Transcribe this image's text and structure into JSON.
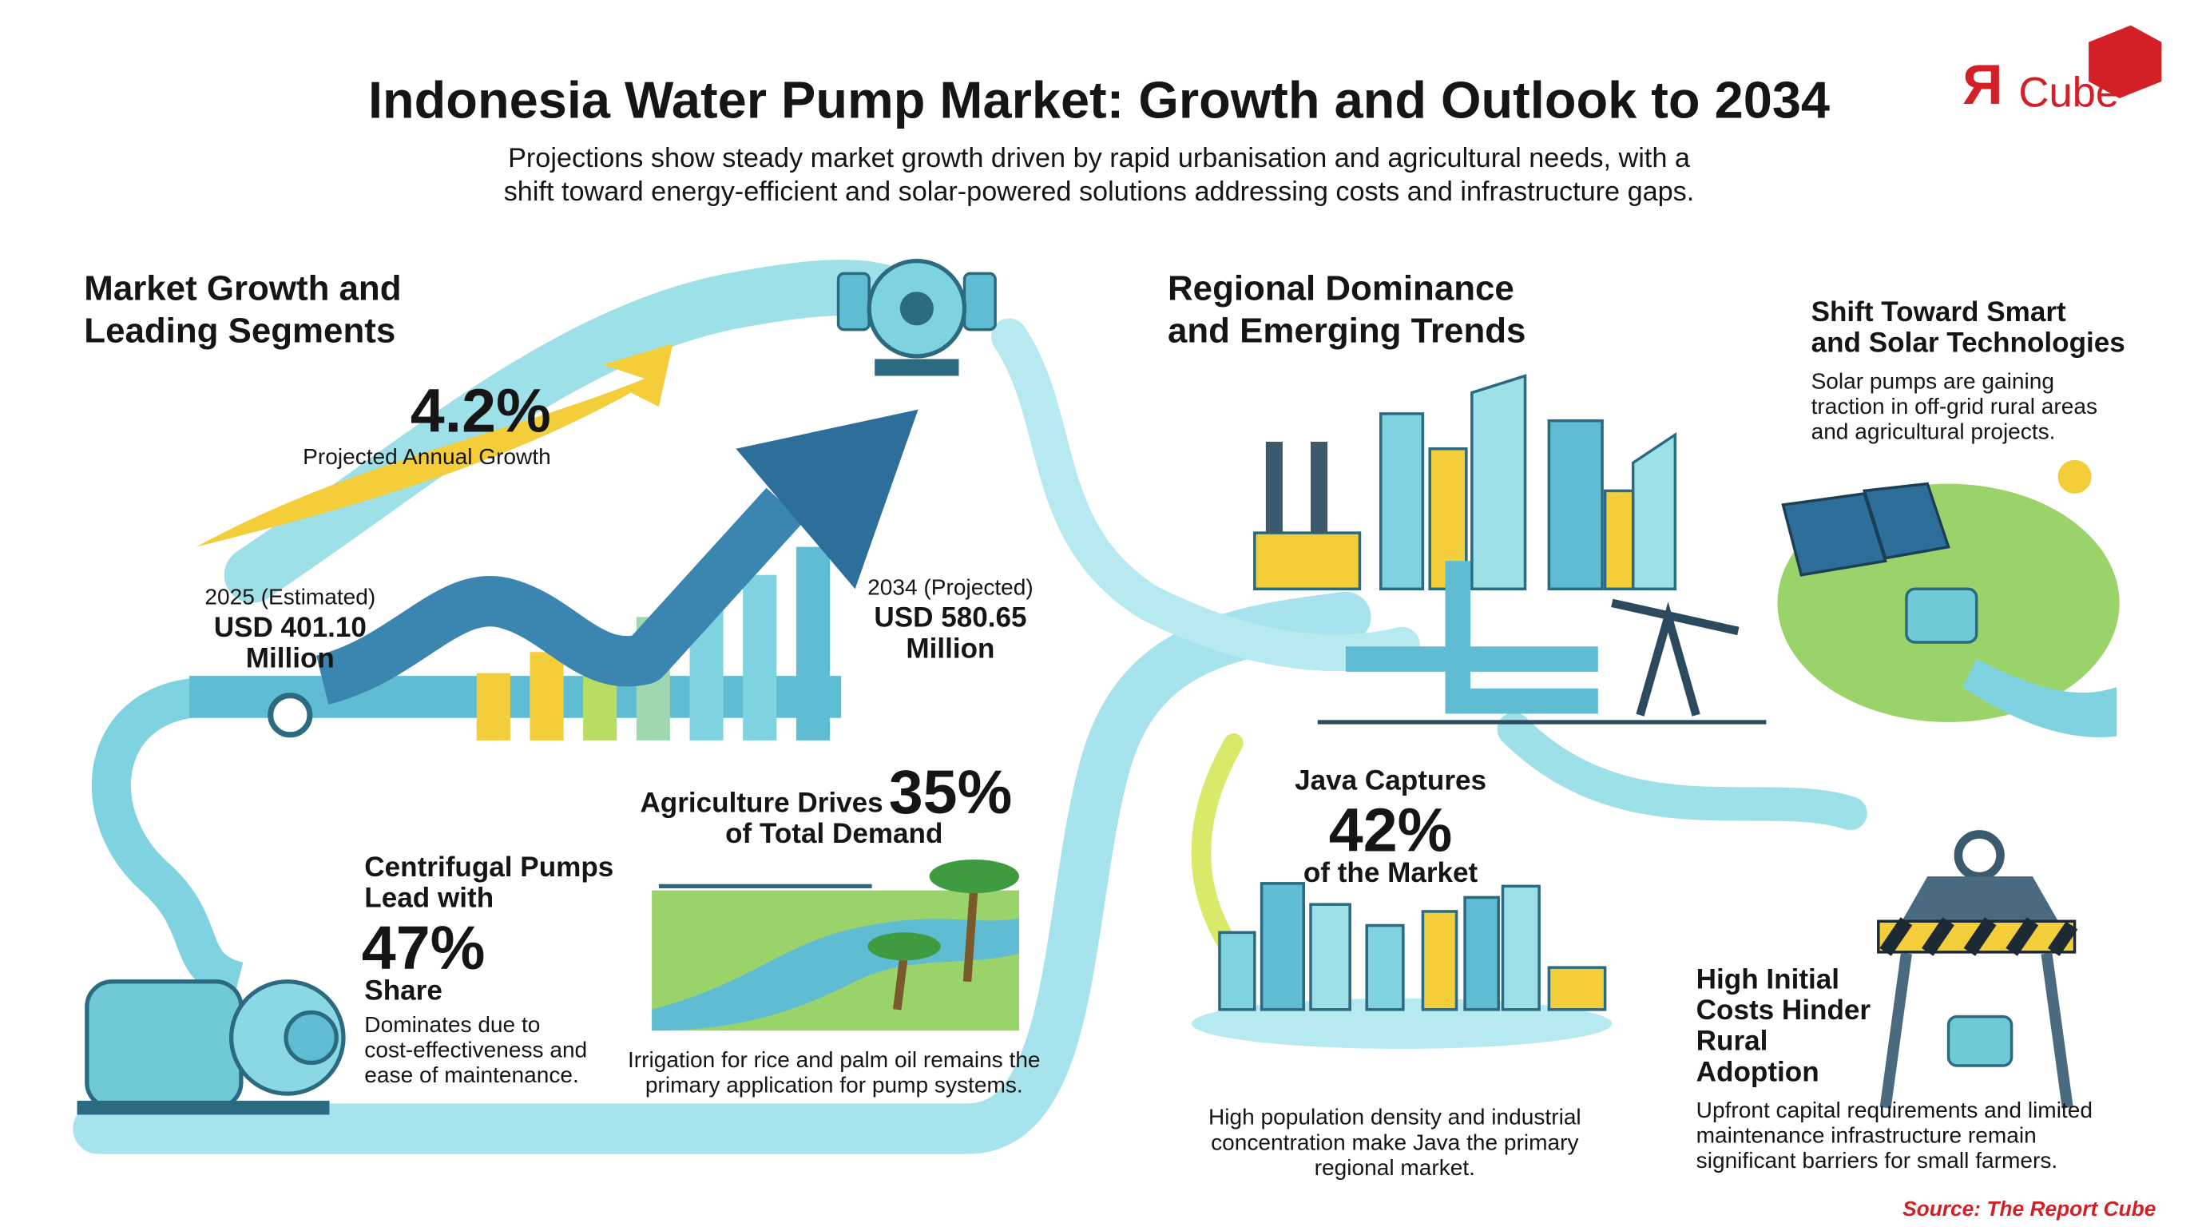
{
  "header": {
    "title": "Indonesia Water Pump Market: Growth and Outlook to 2034",
    "subtitle": [
      "Projections show steady market growth driven by rapid urbanisation and agricultural needs, with a",
      "shift toward energy-efficient and solar-powered solutions addressing costs and infrastructure gaps."
    ],
    "logo": {
      "mark": "Я",
      "text": "Cube"
    }
  },
  "growth_section": {
    "heading": [
      "Market Growth and",
      "Leading Segments"
    ],
    "growth": {
      "value": "4.2%",
      "label": "Projected Annual Growth"
    },
    "start": {
      "label": "2025 (Estimated)",
      "value": [
        "USD 401.10",
        "Million"
      ]
    },
    "end": {
      "label": "2034 (Projected)",
      "value": [
        "USD 580.65",
        "Million"
      ]
    },
    "centrifugal": {
      "heading": [
        "Centrifugal Pumps",
        "Lead with"
      ],
      "value": "47%",
      "suffix": "Share",
      "text": [
        "Dominates due to",
        "cost-effectiveness and",
        "ease of maintenance."
      ]
    },
    "agriculture": {
      "heading": "Agriculture Drives",
      "value": "35%",
      "suffix": "of Total Demand",
      "text": [
        "Irrigation for rice and palm oil remains the",
        "primary application for pump systems."
      ]
    }
  },
  "regional_section": {
    "heading": [
      "Regional Dominance",
      "and Emerging Trends"
    ],
    "solar": {
      "heading": [
        "Shift Toward Smart",
        "and Solar Technologies"
      ],
      "text": [
        "Solar pumps are gaining",
        "traction in off-grid rural areas",
        "and agricultural projects."
      ]
    },
    "java": {
      "heading": "Java Captures",
      "value": "42%",
      "suffix": "of the Market",
      "text": [
        "High population density and industrial",
        "concentration make Java the primary",
        "regional market."
      ]
    },
    "costs": {
      "heading": [
        "High Initial",
        "Costs Hinder",
        "Rural",
        "Adoption"
      ],
      "text": [
        "Upfront capital requirements and limited",
        "maintenance infrastructure remain",
        "significant barriers for small farmers."
      ]
    }
  },
  "source": "Source: The Report Cube"
}
